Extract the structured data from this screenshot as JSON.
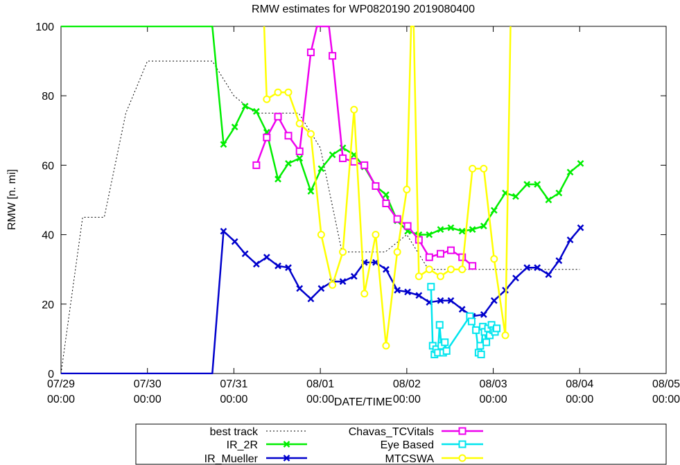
{
  "chart_data": {
    "type": "line",
    "title": "RMW estimates for WP0820190 2019080400",
    "xlabel": "DATE/TIME",
    "ylabel": "RMW [n. mi]",
    "ylim": [
      0,
      100
    ],
    "yticks": [
      "0",
      "20",
      "40",
      "60",
      "80",
      "100"
    ],
    "xlim": [
      0,
      7
    ],
    "xticks": [
      {
        "x": 0,
        "date": "07/29",
        "time": "00:00"
      },
      {
        "x": 1,
        "date": "07/30",
        "time": "00:00"
      },
      {
        "x": 2,
        "date": "07/31",
        "time": "00:00"
      },
      {
        "x": 3,
        "date": "08/01",
        "time": "00:00"
      },
      {
        "x": 4,
        "date": "08/02",
        "time": "00:00"
      },
      {
        "x": 5,
        "date": "08/03",
        "time": "00:00"
      },
      {
        "x": 6,
        "date": "08/04",
        "time": "00:00"
      },
      {
        "x": 7,
        "date": "08/05",
        "time": "00:00"
      }
    ],
    "grid": false,
    "legend_position": "bottom",
    "x_unit_note": "x values in days since 07/29 00:00",
    "series": [
      {
        "name": "best track",
        "color": "#000000",
        "style": "dotted",
        "marker": "none",
        "points": [
          [
            0,
            0
          ],
          [
            0.25,
            45
          ],
          [
            0.5,
            45
          ],
          [
            0.75,
            75
          ],
          [
            1,
            90
          ],
          [
            1.25,
            90
          ],
          [
            1.5,
            90
          ],
          [
            1.75,
            90
          ],
          [
            2,
            80
          ],
          [
            2.25,
            75
          ],
          [
            2.5,
            75
          ],
          [
            2.75,
            75
          ],
          [
            3,
            65
          ],
          [
            3.25,
            35
          ],
          [
            3.5,
            35
          ],
          [
            3.75,
            35
          ],
          [
            4,
            40
          ],
          [
            4.25,
            30
          ],
          [
            4.5,
            30
          ],
          [
            4.75,
            30
          ],
          [
            5,
            30
          ],
          [
            5.25,
            30
          ],
          [
            5.5,
            30
          ],
          [
            5.75,
            30
          ],
          [
            6,
            30
          ]
        ]
      },
      {
        "name": "IR_2R",
        "color": "#00ee00",
        "style": "solid",
        "marker": "x",
        "points": [
          [
            0,
            100
          ],
          [
            1.75,
            100
          ],
          [
            1.88,
            66
          ],
          [
            2.01,
            71
          ],
          [
            2.13,
            77
          ],
          [
            2.26,
            75.5
          ],
          [
            2.38,
            69.5
          ],
          [
            2.51,
            56
          ],
          [
            2.63,
            60.5
          ],
          [
            2.76,
            62
          ],
          [
            2.89,
            52.5
          ],
          [
            3.01,
            59
          ],
          [
            3.14,
            63
          ],
          [
            3.26,
            65
          ],
          [
            3.39,
            63
          ],
          [
            3.51,
            59.5
          ],
          [
            3.64,
            54
          ],
          [
            3.76,
            51.5
          ],
          [
            3.89,
            44
          ],
          [
            4.01,
            41
          ],
          [
            4.14,
            40
          ],
          [
            4.26,
            40
          ],
          [
            4.39,
            41.5
          ],
          [
            4.51,
            42
          ],
          [
            4.64,
            41
          ],
          [
            4.76,
            41.5
          ],
          [
            4.89,
            42.5
          ],
          [
            5.01,
            47
          ],
          [
            5.14,
            52
          ],
          [
            5.26,
            51
          ],
          [
            5.39,
            54.5
          ],
          [
            5.51,
            54.5
          ],
          [
            5.64,
            50
          ],
          [
            5.76,
            52
          ],
          [
            5.89,
            58
          ],
          [
            6.01,
            60.5
          ]
        ]
      },
      {
        "name": "IR_Mueller",
        "color": "#0000cc",
        "style": "solid",
        "marker": "x",
        "points": [
          [
            0,
            0
          ],
          [
            1.75,
            0
          ],
          [
            1.88,
            41
          ],
          [
            2.01,
            38
          ],
          [
            2.13,
            34.5
          ],
          [
            2.26,
            31.5
          ],
          [
            2.38,
            33.5
          ],
          [
            2.51,
            31
          ],
          [
            2.63,
            30.5
          ],
          [
            2.76,
            24.5
          ],
          [
            2.89,
            21.5
          ],
          [
            3.01,
            24.5
          ],
          [
            3.14,
            26.5
          ],
          [
            3.26,
            26.5
          ],
          [
            3.39,
            28
          ],
          [
            3.51,
            32
          ],
          [
            3.64,
            32
          ],
          [
            3.76,
            30
          ],
          [
            3.89,
            24
          ],
          [
            4.01,
            23.5
          ],
          [
            4.14,
            22.5
          ],
          [
            4.26,
            20.5
          ],
          [
            4.39,
            21
          ],
          [
            4.51,
            21
          ],
          [
            4.64,
            18.5
          ],
          [
            4.76,
            16.5
          ],
          [
            4.89,
            17
          ],
          [
            5.01,
            21
          ],
          [
            5.14,
            24
          ],
          [
            5.26,
            27.5
          ],
          [
            5.39,
            30.5
          ],
          [
            5.51,
            30.5
          ],
          [
            5.64,
            28.5
          ],
          [
            5.76,
            32.5
          ],
          [
            5.89,
            38.5
          ],
          [
            6.01,
            42
          ]
        ]
      },
      {
        "name": "Chavas_TCVitals",
        "color": "#ee00ee",
        "style": "solid",
        "marker": "square",
        "points": [
          [
            2.26,
            60
          ],
          [
            2.38,
            68
          ],
          [
            2.51,
            74
          ],
          [
            2.63,
            68.5
          ],
          [
            2.76,
            64
          ],
          [
            2.89,
            92.5
          ],
          [
            2.96,
            100
          ],
          [
            3.1,
            100
          ],
          [
            3.14,
            91.5
          ],
          [
            3.26,
            62
          ],
          [
            3.39,
            61
          ],
          [
            3.51,
            60
          ],
          [
            3.64,
            54
          ],
          [
            3.76,
            49
          ],
          [
            3.89,
            44.5
          ],
          [
            4.01,
            42.5
          ],
          [
            4.14,
            38.5
          ],
          [
            4.26,
            33.5
          ],
          [
            4.39,
            34.5
          ],
          [
            4.51,
            35.5
          ],
          [
            4.64,
            33.5
          ],
          [
            4.76,
            31
          ]
        ]
      },
      {
        "name": "Eye Based",
        "color": "#00e5ee",
        "style": "solid",
        "marker": "square",
        "points": [
          [
            4.28,
            25
          ],
          [
            4.3,
            8
          ],
          [
            4.32,
            5.5
          ],
          [
            4.34,
            7
          ],
          [
            4.36,
            6
          ],
          [
            4.38,
            14
          ],
          [
            4.4,
            8
          ],
          [
            4.42,
            6
          ],
          [
            4.44,
            9
          ],
          [
            4.46,
            6.5
          ],
          [
            4.73,
            16.5
          ],
          [
            4.75,
            15
          ],
          [
            4.8,
            12.5
          ],
          [
            4.83,
            6
          ],
          [
            4.85,
            8
          ],
          [
            4.86,
            5.5
          ],
          [
            4.88,
            13.5
          ],
          [
            4.9,
            12
          ],
          [
            4.92,
            9
          ],
          [
            4.94,
            13
          ],
          [
            4.96,
            11
          ],
          [
            4.98,
            14
          ],
          [
            5.0,
            12.5
          ],
          [
            5.02,
            12
          ],
          [
            5.04,
            13
          ]
        ]
      },
      {
        "name": "MTCSWA",
        "color": "#ffff00",
        "style": "solid",
        "marker": "circle",
        "points": [
          [
            2.35,
            100
          ],
          [
            2.38,
            79
          ],
          [
            2.51,
            81
          ],
          [
            2.63,
            81
          ],
          [
            2.76,
            72
          ],
          [
            2.89,
            69
          ],
          [
            3.01,
            40
          ],
          [
            3.14,
            25.5
          ],
          [
            3.26,
            35
          ],
          [
            3.39,
            76
          ],
          [
            3.51,
            23
          ],
          [
            3.64,
            40
          ],
          [
            3.76,
            8
          ],
          [
            3.89,
            35
          ],
          [
            4.0,
            53
          ],
          [
            4.05,
            100
          ],
          [
            4.08,
            100
          ],
          [
            4.14,
            28
          ],
          [
            4.26,
            30
          ],
          [
            4.39,
            28
          ],
          [
            4.51,
            30
          ],
          [
            4.64,
            30
          ],
          [
            4.76,
            59
          ],
          [
            4.89,
            59
          ],
          [
            5.01,
            33
          ],
          [
            5.14,
            11
          ],
          [
            5.2,
            100
          ]
        ]
      }
    ]
  }
}
